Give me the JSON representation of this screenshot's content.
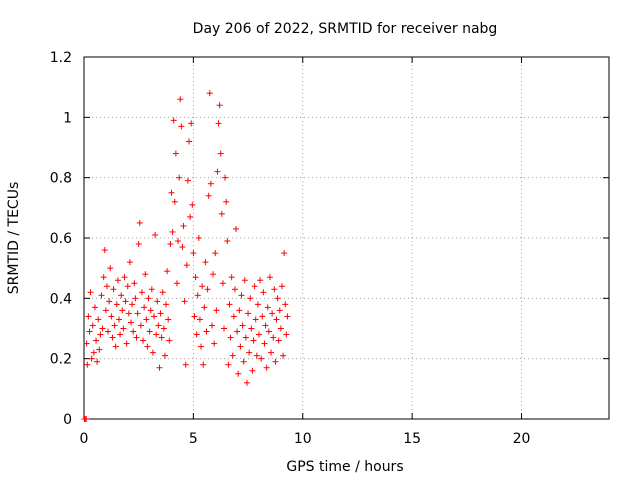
{
  "chart_data": {
    "type": "scatter",
    "title": "Day 206 of 2022, SRMTID for receiver nabg",
    "xlabel": "GPS time / hours",
    "ylabel": "SRMTID / TECUs",
    "xlim": [
      0,
      24
    ],
    "ylim": [
      0,
      1.2
    ],
    "xticks": [
      0,
      5,
      10,
      15,
      20
    ],
    "yticks": [
      0,
      0.2,
      0.4,
      0.6,
      0.8,
      1,
      1.2
    ],
    "xtick_labels": [
      "0",
      "5",
      "10",
      "15",
      "20"
    ],
    "ytick_labels": [
      "0",
      "0.2",
      "0.4",
      "0.6",
      "0.8",
      "1",
      "1.2"
    ],
    "grid": true,
    "marker": "+",
    "series_color": "#ff0000",
    "points": [
      [
        0.02,
        0.0
      ],
      [
        0.05,
        0.0
      ],
      [
        0.1,
        0.0
      ],
      [
        0.12,
        0.25
      ],
      [
        0.15,
        0.18
      ],
      [
        0.2,
        0.34
      ],
      [
        0.25,
        0.29
      ],
      [
        0.3,
        0.42
      ],
      [
        0.35,
        0.2
      ],
      [
        0.4,
        0.31
      ],
      [
        0.45,
        0.22
      ],
      [
        0.5,
        0.37
      ],
      [
        0.55,
        0.26
      ],
      [
        0.6,
        0.19
      ],
      [
        0.65,
        0.33
      ],
      [
        0.7,
        0.23
      ],
      [
        0.75,
        0.28
      ],
      [
        0.8,
        0.41
      ],
      [
        0.85,
        0.3
      ],
      [
        0.9,
        0.47
      ],
      [
        0.95,
        0.56
      ],
      [
        1.0,
        0.36
      ],
      [
        1.05,
        0.44
      ],
      [
        1.1,
        0.29
      ],
      [
        1.15,
        0.39
      ],
      [
        1.2,
        0.5
      ],
      [
        1.25,
        0.34
      ],
      [
        1.3,
        0.27
      ],
      [
        1.35,
        0.43
      ],
      [
        1.4,
        0.31
      ],
      [
        1.45,
        0.24
      ],
      [
        1.5,
        0.38
      ],
      [
        1.55,
        0.46
      ],
      [
        1.6,
        0.33
      ],
      [
        1.65,
        0.28
      ],
      [
        1.7,
        0.41
      ],
      [
        1.75,
        0.36
      ],
      [
        1.8,
        0.3
      ],
      [
        1.85,
        0.47
      ],
      [
        1.9,
        0.39
      ],
      [
        1.95,
        0.25
      ],
      [
        2.0,
        0.44
      ],
      [
        2.05,
        0.35
      ],
      [
        2.1,
        0.52
      ],
      [
        2.15,
        0.32
      ],
      [
        2.2,
        0.38
      ],
      [
        2.25,
        0.29
      ],
      [
        2.3,
        0.45
      ],
      [
        2.35,
        0.4
      ],
      [
        2.4,
        0.27
      ],
      [
        2.45,
        0.35
      ],
      [
        2.5,
        0.58
      ],
      [
        2.55,
        0.65
      ],
      [
        2.6,
        0.31
      ],
      [
        2.65,
        0.42
      ],
      [
        2.7,
        0.26
      ],
      [
        2.75,
        0.37
      ],
      [
        2.8,
        0.48
      ],
      [
        2.85,
        0.33
      ],
      [
        2.9,
        0.24
      ],
      [
        2.95,
        0.4
      ],
      [
        3.0,
        0.29
      ],
      [
        3.05,
        0.36
      ],
      [
        3.1,
        0.43
      ],
      [
        3.15,
        0.22
      ],
      [
        3.2,
        0.34
      ],
      [
        3.25,
        0.61
      ],
      [
        3.3,
        0.28
      ],
      [
        3.35,
        0.39
      ],
      [
        3.4,
        0.31
      ],
      [
        3.45,
        0.17
      ],
      [
        3.5,
        0.35
      ],
      [
        3.55,
        0.27
      ],
      [
        3.6,
        0.42
      ],
      [
        3.65,
        0.3
      ],
      [
        3.7,
        0.21
      ],
      [
        3.75,
        0.38
      ],
      [
        3.8,
        0.49
      ],
      [
        3.85,
        0.33
      ],
      [
        3.9,
        0.26
      ],
      [
        3.95,
        0.58
      ],
      [
        4.0,
        0.75
      ],
      [
        4.05,
        0.62
      ],
      [
        4.1,
        0.99
      ],
      [
        4.15,
        0.72
      ],
      [
        4.2,
        0.88
      ],
      [
        4.25,
        0.45
      ],
      [
        4.3,
        0.59
      ],
      [
        4.35,
        0.8
      ],
      [
        4.4,
        1.06
      ],
      [
        4.45,
        0.97
      ],
      [
        4.5,
        0.57
      ],
      [
        4.55,
        0.64
      ],
      [
        4.6,
        0.39
      ],
      [
        4.65,
        0.18
      ],
      [
        4.7,
        0.51
      ],
      [
        4.75,
        0.79
      ],
      [
        4.8,
        0.92
      ],
      [
        4.85,
        0.67
      ],
      [
        4.9,
        0.98
      ],
      [
        4.95,
        0.71
      ],
      [
        5.0,
        0.55
      ],
      [
        5.05,
        0.34
      ],
      [
        5.1,
        0.47
      ],
      [
        5.15,
        0.28
      ],
      [
        5.2,
        0.41
      ],
      [
        5.25,
        0.6
      ],
      [
        5.3,
        0.33
      ],
      [
        5.35,
        0.24
      ],
      [
        5.4,
        0.44
      ],
      [
        5.45,
        0.18
      ],
      [
        5.5,
        0.37
      ],
      [
        5.55,
        0.52
      ],
      [
        5.6,
        0.29
      ],
      [
        5.65,
        0.43
      ],
      [
        5.7,
        0.74
      ],
      [
        5.75,
        1.08
      ],
      [
        5.8,
        0.78
      ],
      [
        5.85,
        0.31
      ],
      [
        5.9,
        0.48
      ],
      [
        5.95,
        0.25
      ],
      [
        6.0,
        0.55
      ],
      [
        6.05,
        0.36
      ],
      [
        6.1,
        0.82
      ],
      [
        6.15,
        0.98
      ],
      [
        6.2,
        1.04
      ],
      [
        6.25,
        0.88
      ],
      [
        6.3,
        0.68
      ],
      [
        6.35,
        0.45
      ],
      [
        6.4,
        0.3
      ],
      [
        6.45,
        0.8
      ],
      [
        6.5,
        0.72
      ],
      [
        6.55,
        0.59
      ],
      [
        6.6,
        0.18
      ],
      [
        6.65,
        0.38
      ],
      [
        6.7,
        0.27
      ],
      [
        6.75,
        0.47
      ],
      [
        6.8,
        0.21
      ],
      [
        6.85,
        0.34
      ],
      [
        6.9,
        0.43
      ],
      [
        6.95,
        0.63
      ],
      [
        7.0,
        0.29
      ],
      [
        7.05,
        0.15
      ],
      [
        7.1,
        0.36
      ],
      [
        7.15,
        0.24
      ],
      [
        7.2,
        0.41
      ],
      [
        7.25,
        0.31
      ],
      [
        7.3,
        0.19
      ],
      [
        7.35,
        0.46
      ],
      [
        7.4,
        0.27
      ],
      [
        7.45,
        0.12
      ],
      [
        7.5,
        0.35
      ],
      [
        7.55,
        0.22
      ],
      [
        7.6,
        0.4
      ],
      [
        7.65,
        0.3
      ],
      [
        7.7,
        0.16
      ],
      [
        7.75,
        0.26
      ],
      [
        7.8,
        0.44
      ],
      [
        7.85,
        0.33
      ],
      [
        7.9,
        0.21
      ],
      [
        7.95,
        0.38
      ],
      [
        8.0,
        0.28
      ],
      [
        8.05,
        0.46
      ],
      [
        8.1,
        0.2
      ],
      [
        8.15,
        0.34
      ],
      [
        8.2,
        0.42
      ],
      [
        8.25,
        0.25
      ],
      [
        8.3,
        0.31
      ],
      [
        8.35,
        0.17
      ],
      [
        8.4,
        0.37
      ],
      [
        8.45,
        0.29
      ],
      [
        8.5,
        0.47
      ],
      [
        8.55,
        0.22
      ],
      [
        8.6,
        0.35
      ],
      [
        8.65,
        0.27
      ],
      [
        8.7,
        0.43
      ],
      [
        8.75,
        0.19
      ],
      [
        8.8,
        0.33
      ],
      [
        8.85,
        0.4
      ],
      [
        8.9,
        0.26
      ],
      [
        8.95,
        0.36
      ],
      [
        9.0,
        0.3
      ],
      [
        9.05,
        0.44
      ],
      [
        9.1,
        0.21
      ],
      [
        9.15,
        0.55
      ],
      [
        9.2,
        0.38
      ],
      [
        9.25,
        0.28
      ],
      [
        9.3,
        0.34
      ]
    ]
  }
}
